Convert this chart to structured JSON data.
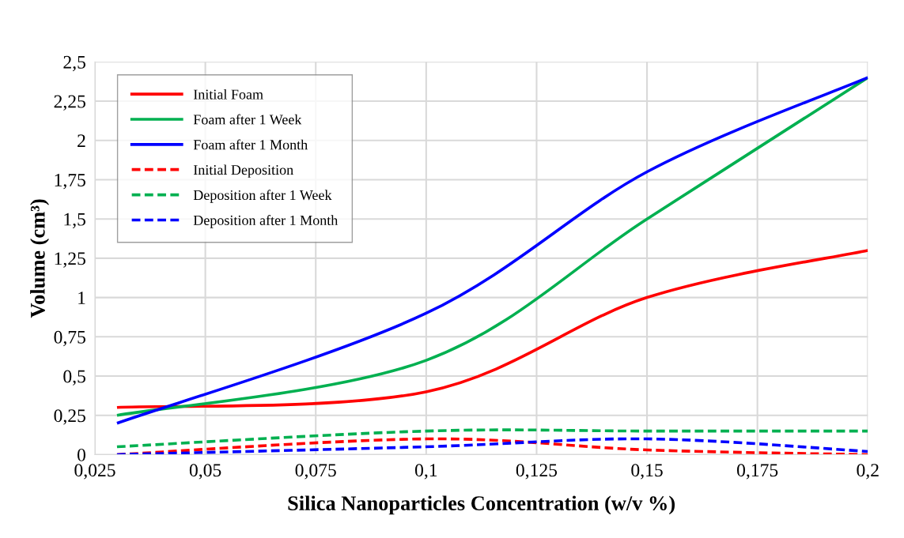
{
  "chart_data": {
    "type": "line",
    "xlabel": "Silica Nanoparticles Concentration (w/v %)",
    "ylabel": "Volume (cm³)",
    "x": [
      0.03,
      0.1,
      0.15,
      0.2
    ],
    "xlim": [
      0.025,
      0.2
    ],
    "xticks": [
      {
        "value": 0.025,
        "label": "0,025"
      },
      {
        "value": 0.05,
        "label": "0,05"
      },
      {
        "value": 0.075,
        "label": "0,075"
      },
      {
        "value": 0.1,
        "label": "0,1"
      },
      {
        "value": 0.125,
        "label": "0,125"
      },
      {
        "value": 0.15,
        "label": "0,15"
      },
      {
        "value": 0.175,
        "label": "0,175"
      },
      {
        "value": 0.2,
        "label": "0,2"
      }
    ],
    "ylim": [
      0,
      2.5
    ],
    "yticks": [
      0,
      {
        "value": 0.25,
        "label": "0,25"
      },
      {
        "value": 0.5,
        "label": "0,5"
      },
      {
        "value": 0.75,
        "label": "0,75"
      },
      1,
      {
        "value": 1.25,
        "label": "1,25"
      },
      {
        "value": 1.5,
        "label": "1,5"
      },
      {
        "value": 1.75,
        "label": "1,75"
      },
      2,
      {
        "value": 2.25,
        "label": "2,25"
      },
      {
        "value": 2.5,
        "label": "2,5"
      }
    ],
    "grid": true,
    "legend": "top left",
    "marker": "none",
    "series": [
      {
        "name": "Initial Foam",
        "color": "#ff0000",
        "line_style": "solid",
        "values": [
          0.3,
          0.4,
          1.0,
          1.3
        ]
      },
      {
        "name": "Foam after 1 Week",
        "color": "#00b050",
        "line_style": "solid",
        "values": [
          0.25,
          0.6,
          1.5,
          2.4
        ]
      },
      {
        "name": "Foam after 1 Month",
        "color": "#0000ff",
        "line_style": "solid",
        "values": [
          0.2,
          0.9,
          1.8,
          2.4
        ]
      },
      {
        "name": "Initial Deposition",
        "color": "#ff0000",
        "line_style": "dashed",
        "values": [
          0,
          0.1,
          0.03,
          0
        ]
      },
      {
        "name": "Deposition after 1 Week",
        "color": "#00b050",
        "line_style": "dashed",
        "values": [
          0.05,
          0.15,
          0.15,
          0.15
        ]
      },
      {
        "name": "Deposition after 1 Month",
        "color": "#0000ff",
        "line_style": "dashed",
        "values": [
          0,
          0.05,
          0.1,
          0.02
        ]
      }
    ]
  }
}
